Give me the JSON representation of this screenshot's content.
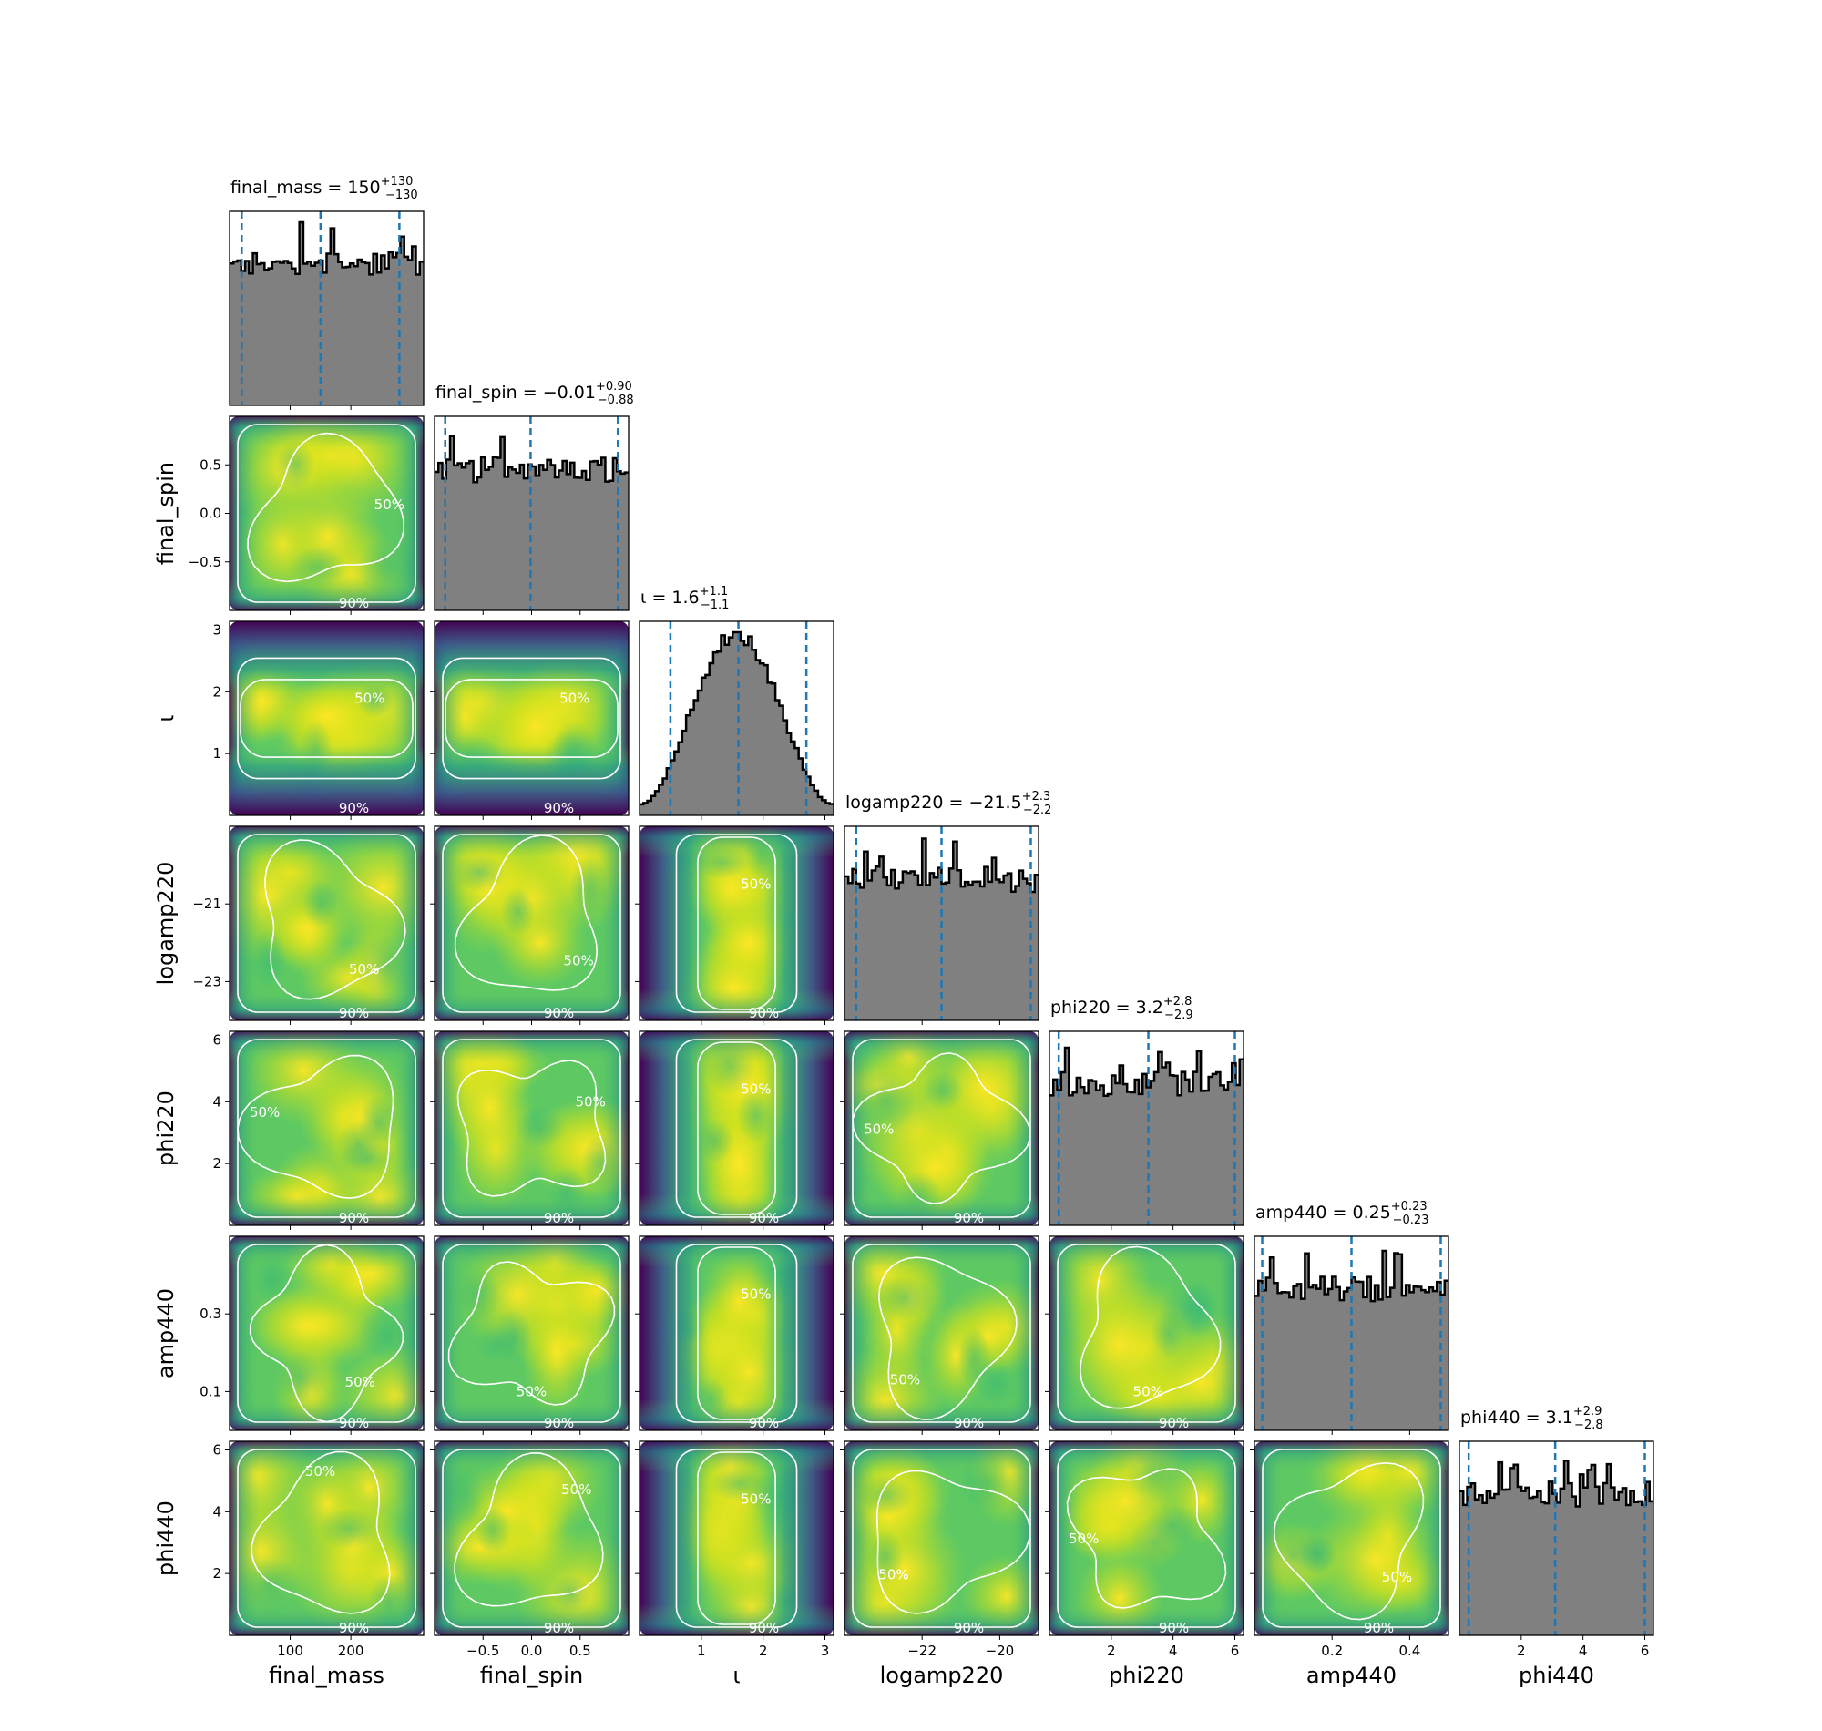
{
  "chart_data": {
    "type": "corner",
    "parameters": [
      "final_mass",
      "final_spin",
      "ι",
      "logamp220",
      "phi220",
      "amp440",
      "phi440"
    ],
    "ranges": [
      [
        0,
        320
      ],
      [
        -1,
        1
      ],
      [
        0,
        3.14
      ],
      [
        -24,
        -19
      ],
      [
        0,
        6.28
      ],
      [
        0,
        0.5
      ],
      [
        0,
        6.28
      ]
    ],
    "ticks": [
      [
        "100",
        "200"
      ],
      [
        "−0.5",
        "0.0",
        "0.5"
      ],
      [
        "1",
        "2",
        "3"
      ],
      [
        "−22",
        "−20"
      ],
      [
        "2",
        "4",
        "6"
      ],
      [
        "0.2",
        "0.4"
      ],
      [
        "2",
        "4",
        "6"
      ]
    ],
    "tick_values": [
      [
        100,
        200
      ],
      [
        -0.5,
        0.0,
        0.5
      ],
      [
        1,
        2,
        3
      ],
      [
        -22,
        -20
      ],
      [
        2,
        4,
        6
      ],
      [
        0.2,
        0.4
      ],
      [
        2,
        4,
        6
      ]
    ],
    "y_ticks": [
      null,
      [
        "0.5",
        "0.0",
        "−0.5"
      ],
      [
        "3",
        "2",
        "1"
      ],
      [
        "−21",
        "−23"
      ],
      [
        "6",
        "4",
        "2"
      ],
      [
        "0.3",
        "0.1"
      ],
      [
        "6",
        "4",
        "2"
      ]
    ],
    "y_tick_values": [
      null,
      [
        0.5,
        0.0,
        -0.5
      ],
      [
        3,
        2,
        1
      ],
      [
        -21,
        -23
      ],
      [
        6,
        4,
        2
      ],
      [
        0.3,
        0.1
      ],
      [
        6,
        4,
        2
      ]
    ],
    "x_axis_labels": [
      "final_mass",
      "final_spin",
      "ι",
      "logamp220",
      "phi220",
      "amp440",
      "phi440"
    ],
    "y_axis_labels": [
      "final_spin",
      "ι",
      "logamp220",
      "phi220",
      "amp440",
      "phi440"
    ],
    "summaries": [
      {
        "name": "final_mass",
        "median": 150,
        "plus": 130,
        "minus": 130,
        "median_text": "150",
        "plus_text": "+130",
        "minus_text": "−130"
      },
      {
        "name": "final_spin",
        "median": -0.01,
        "plus": 0.9,
        "minus": 0.88,
        "median_text": "−0.01",
        "plus_text": "+0.90",
        "minus_text": "−0.88"
      },
      {
        "name": "ι",
        "median": 1.6,
        "plus": 1.1,
        "minus": 1.1,
        "median_text": "1.6",
        "plus_text": "+1.1",
        "minus_text": "−1.1"
      },
      {
        "name": "logamp220",
        "median": -21.5,
        "plus": 2.3,
        "minus": 2.2,
        "median_text": "−21.5",
        "plus_text": "+2.3",
        "minus_text": "−2.2"
      },
      {
        "name": "phi220",
        "median": 3.2,
        "plus": 2.8,
        "minus": 2.9,
        "median_text": "3.2",
        "plus_text": "+2.8",
        "minus_text": "−2.9"
      },
      {
        "name": "amp440",
        "median": 0.25,
        "plus": 0.23,
        "minus": 0.23,
        "median_text": "0.25",
        "plus_text": "+0.23",
        "minus_text": "−0.23"
      },
      {
        "name": "phi440",
        "median": 3.1,
        "plus": 2.9,
        "minus": 2.8,
        "median_text": "3.1",
        "plus_text": "+2.9",
        "minus_text": "−2.8"
      }
    ],
    "histogram_shapes": [
      "uniform",
      "uniform",
      "peaked",
      "uniform",
      "uniform",
      "uniform",
      "uniform"
    ],
    "contour_levels": [
      "50%",
      "90%"
    ],
    "contour_label_50": "50%",
    "contour_label_90": "90%",
    "quantile_line_color": "#1f77b4",
    "histogram_fill_color": "#808080",
    "colormap": "viridis",
    "colormap_stops": [
      "#440154",
      "#3b528b",
      "#21918c",
      "#5ec962",
      "#fde725"
    ]
  }
}
